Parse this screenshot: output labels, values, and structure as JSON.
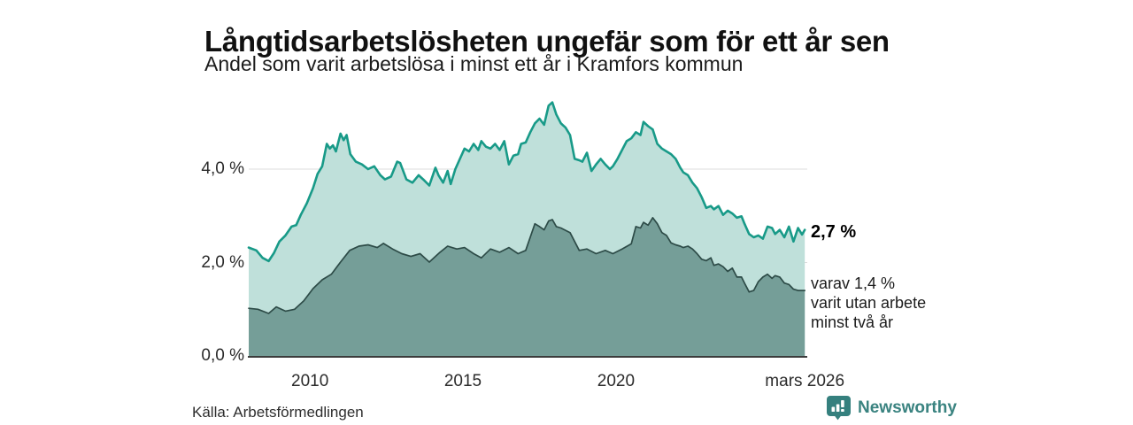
{
  "header": {
    "title": "Långtidsarbetslösheten ungefär som för ett år sen",
    "subtitle": "Andel som varit arbetslösa i minst ett år i Kramfors kommun"
  },
  "annotations": {
    "end_value": "2,7 %",
    "end_note": "varav 1,4 %\nvarit utan arbete\nminst två år"
  },
  "footer": {
    "source": "Källa: Arbetsförmedlingen",
    "brand": "Newsworthy"
  },
  "chart_data": {
    "type": "area",
    "title": "Långtidsarbetslösheten ungefär som för ett år sen",
    "subtitle": "Andel som varit arbetslösa i minst ett år i Kramfors kommun",
    "unit": "%",
    "x_min": 2008.0,
    "x_max": 2026.25,
    "ylim": [
      0,
      5.6
    ],
    "grid": "horizontal",
    "legend_position": "right-end-labels",
    "y_ticks": [
      {
        "value": 0,
        "label": "0,0 %"
      },
      {
        "value": 2,
        "label": "2,0 %"
      },
      {
        "value": 4,
        "label": "4,0 %"
      }
    ],
    "x_ticks": [
      {
        "value": 2010,
        "label": "2010"
      },
      {
        "value": 2015,
        "label": "2015"
      },
      {
        "value": 2020,
        "label": "2020"
      },
      {
        "value": 2026.17,
        "label": "mars 2026"
      }
    ],
    "colors": {
      "grid": "#dcdcdc",
      "axis": "#3c3c3c",
      "brand_teal": "#35807e"
    },
    "series": [
      {
        "name": "Andel arbetslösa minst ett år",
        "end_value": 2.7,
        "end_label": "2,7 %",
        "line_color": "#189a88",
        "fill_color": "#bfe0da",
        "points": [
          [
            2008.0,
            2.32
          ],
          [
            2008.25,
            2.26
          ],
          [
            2008.45,
            2.1
          ],
          [
            2008.65,
            2.03
          ],
          [
            2008.82,
            2.2
          ],
          [
            2009.0,
            2.45
          ],
          [
            2009.2,
            2.58
          ],
          [
            2009.4,
            2.77
          ],
          [
            2009.55,
            2.8
          ],
          [
            2009.7,
            3.02
          ],
          [
            2009.9,
            3.27
          ],
          [
            2010.1,
            3.59
          ],
          [
            2010.25,
            3.9
          ],
          [
            2010.4,
            4.06
          ],
          [
            2010.55,
            4.54
          ],
          [
            2010.65,
            4.44
          ],
          [
            2010.75,
            4.51
          ],
          [
            2010.85,
            4.38
          ],
          [
            2011.0,
            4.76
          ],
          [
            2011.1,
            4.62
          ],
          [
            2011.2,
            4.73
          ],
          [
            2011.32,
            4.32
          ],
          [
            2011.5,
            4.16
          ],
          [
            2011.7,
            4.1
          ],
          [
            2011.9,
            4.0
          ],
          [
            2012.1,
            4.06
          ],
          [
            2012.3,
            3.87
          ],
          [
            2012.45,
            3.78
          ],
          [
            2012.65,
            3.84
          ],
          [
            2012.85,
            4.16
          ],
          [
            2012.95,
            4.13
          ],
          [
            2013.15,
            3.78
          ],
          [
            2013.35,
            3.71
          ],
          [
            2013.55,
            3.87
          ],
          [
            2013.7,
            3.78
          ],
          [
            2013.9,
            3.65
          ],
          [
            2014.1,
            4.03
          ],
          [
            2014.2,
            3.87
          ],
          [
            2014.35,
            3.71
          ],
          [
            2014.5,
            3.96
          ],
          [
            2014.6,
            3.68
          ],
          [
            2014.75,
            4.0
          ],
          [
            2014.9,
            4.22
          ],
          [
            2015.05,
            4.44
          ],
          [
            2015.2,
            4.38
          ],
          [
            2015.35,
            4.54
          ],
          [
            2015.5,
            4.41
          ],
          [
            2015.6,
            4.6
          ],
          [
            2015.75,
            4.48
          ],
          [
            2015.9,
            4.44
          ],
          [
            2016.05,
            4.54
          ],
          [
            2016.2,
            4.41
          ],
          [
            2016.35,
            4.6
          ],
          [
            2016.5,
            4.1
          ],
          [
            2016.65,
            4.29
          ],
          [
            2016.8,
            4.32
          ],
          [
            2016.9,
            4.54
          ],
          [
            2017.05,
            4.57
          ],
          [
            2017.2,
            4.79
          ],
          [
            2017.35,
            4.98
          ],
          [
            2017.5,
            5.08
          ],
          [
            2017.65,
            4.95
          ],
          [
            2017.8,
            5.36
          ],
          [
            2017.92,
            5.43
          ],
          [
            2018.05,
            5.17
          ],
          [
            2018.2,
            4.98
          ],
          [
            2018.35,
            4.89
          ],
          [
            2018.5,
            4.73
          ],
          [
            2018.65,
            4.22
          ],
          [
            2018.8,
            4.19
          ],
          [
            2018.9,
            4.16
          ],
          [
            2019.05,
            4.35
          ],
          [
            2019.2,
            3.96
          ],
          [
            2019.35,
            4.1
          ],
          [
            2019.5,
            4.22
          ],
          [
            2019.65,
            4.1
          ],
          [
            2019.8,
            4.0
          ],
          [
            2019.9,
            4.06
          ],
          [
            2020.05,
            4.22
          ],
          [
            2020.2,
            4.41
          ],
          [
            2020.35,
            4.6
          ],
          [
            2020.5,
            4.66
          ],
          [
            2020.65,
            4.79
          ],
          [
            2020.8,
            4.73
          ],
          [
            2020.9,
            5.01
          ],
          [
            2021.05,
            4.92
          ],
          [
            2021.2,
            4.85
          ],
          [
            2021.35,
            4.54
          ],
          [
            2021.5,
            4.44
          ],
          [
            2021.65,
            4.38
          ],
          [
            2021.8,
            4.32
          ],
          [
            2021.95,
            4.22
          ],
          [
            2022.1,
            4.03
          ],
          [
            2022.2,
            3.93
          ],
          [
            2022.35,
            3.87
          ],
          [
            2022.5,
            3.71
          ],
          [
            2022.65,
            3.59
          ],
          [
            2022.8,
            3.4
          ],
          [
            2022.95,
            3.17
          ],
          [
            2023.1,
            3.21
          ],
          [
            2023.2,
            3.14
          ],
          [
            2023.35,
            3.21
          ],
          [
            2023.5,
            3.02
          ],
          [
            2023.65,
            3.11
          ],
          [
            2023.8,
            3.05
          ],
          [
            2023.95,
            2.96
          ],
          [
            2024.1,
            2.99
          ],
          [
            2024.2,
            2.83
          ],
          [
            2024.35,
            2.61
          ],
          [
            2024.5,
            2.54
          ],
          [
            2024.65,
            2.58
          ],
          [
            2024.8,
            2.51
          ],
          [
            2024.95,
            2.77
          ],
          [
            2025.1,
            2.74
          ],
          [
            2025.2,
            2.61
          ],
          [
            2025.35,
            2.7
          ],
          [
            2025.5,
            2.54
          ],
          [
            2025.65,
            2.77
          ],
          [
            2025.8,
            2.45
          ],
          [
            2025.95,
            2.74
          ],
          [
            2026.08,
            2.6
          ],
          [
            2026.17,
            2.7
          ]
        ]
      },
      {
        "name": "varav varit utan arbete minst två år",
        "end_value": 1.4,
        "end_label": "varav 1,4 % varit utan arbete minst två år",
        "line_color": "#2d4b47",
        "fill_color": "#759e98",
        "points": [
          [
            2008.0,
            1.02
          ],
          [
            2008.3,
            1.0
          ],
          [
            2008.65,
            0.91
          ],
          [
            2008.9,
            1.05
          ],
          [
            2009.2,
            0.96
          ],
          [
            2009.5,
            1.0
          ],
          [
            2009.8,
            1.18
          ],
          [
            2010.1,
            1.44
          ],
          [
            2010.4,
            1.63
          ],
          [
            2010.7,
            1.75
          ],
          [
            2011.0,
            2.01
          ],
          [
            2011.3,
            2.26
          ],
          [
            2011.6,
            2.35
          ],
          [
            2011.9,
            2.38
          ],
          [
            2012.2,
            2.32
          ],
          [
            2012.4,
            2.41
          ],
          [
            2012.7,
            2.29
          ],
          [
            2013.0,
            2.19
          ],
          [
            2013.3,
            2.13
          ],
          [
            2013.6,
            2.19
          ],
          [
            2013.9,
            2.01
          ],
          [
            2014.1,
            2.13
          ],
          [
            2014.25,
            2.22
          ],
          [
            2014.5,
            2.35
          ],
          [
            2014.8,
            2.29
          ],
          [
            2015.05,
            2.32
          ],
          [
            2015.35,
            2.19
          ],
          [
            2015.6,
            2.1
          ],
          [
            2015.9,
            2.29
          ],
          [
            2016.2,
            2.22
          ],
          [
            2016.5,
            2.32
          ],
          [
            2016.8,
            2.19
          ],
          [
            2017.05,
            2.26
          ],
          [
            2017.35,
            2.83
          ],
          [
            2017.5,
            2.77
          ],
          [
            2017.65,
            2.7
          ],
          [
            2017.8,
            2.89
          ],
          [
            2017.92,
            2.92
          ],
          [
            2018.05,
            2.77
          ],
          [
            2018.2,
            2.74
          ],
          [
            2018.5,
            2.64
          ],
          [
            2018.8,
            2.26
          ],
          [
            2019.05,
            2.29
          ],
          [
            2019.35,
            2.19
          ],
          [
            2019.65,
            2.26
          ],
          [
            2019.9,
            2.19
          ],
          [
            2020.2,
            2.29
          ],
          [
            2020.5,
            2.4
          ],
          [
            2020.65,
            2.77
          ],
          [
            2020.8,
            2.74
          ],
          [
            2020.9,
            2.86
          ],
          [
            2021.05,
            2.8
          ],
          [
            2021.2,
            2.96
          ],
          [
            2021.35,
            2.83
          ],
          [
            2021.5,
            2.64
          ],
          [
            2021.65,
            2.58
          ],
          [
            2021.8,
            2.42
          ],
          [
            2021.95,
            2.38
          ],
          [
            2022.1,
            2.35
          ],
          [
            2022.2,
            2.32
          ],
          [
            2022.35,
            2.35
          ],
          [
            2022.5,
            2.29
          ],
          [
            2022.65,
            2.19
          ],
          [
            2022.8,
            2.07
          ],
          [
            2022.95,
            2.04
          ],
          [
            2023.1,
            2.1
          ],
          [
            2023.2,
            1.94
          ],
          [
            2023.35,
            1.97
          ],
          [
            2023.5,
            1.91
          ],
          [
            2023.65,
            1.81
          ],
          [
            2023.8,
            1.88
          ],
          [
            2023.95,
            1.69
          ],
          [
            2024.1,
            1.69
          ],
          [
            2024.2,
            1.56
          ],
          [
            2024.35,
            1.37
          ],
          [
            2024.5,
            1.4
          ],
          [
            2024.65,
            1.59
          ],
          [
            2024.8,
            1.69
          ],
          [
            2024.95,
            1.75
          ],
          [
            2025.1,
            1.66
          ],
          [
            2025.2,
            1.72
          ],
          [
            2025.35,
            1.69
          ],
          [
            2025.5,
            1.56
          ],
          [
            2025.65,
            1.53
          ],
          [
            2025.8,
            1.43
          ],
          [
            2025.95,
            1.4
          ],
          [
            2026.17,
            1.4
          ]
        ]
      }
    ]
  }
}
